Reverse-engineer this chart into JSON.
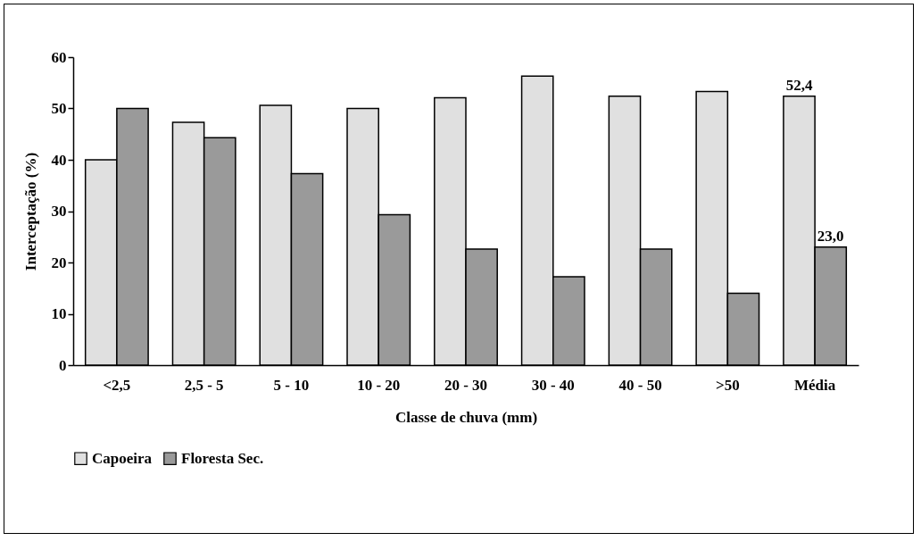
{
  "chart_data": {
    "type": "bar",
    "xlabel": "Classe de chuva (mm)",
    "ylabel": "Interceptação (%)",
    "categories": [
      "<2,5",
      "2,5 - 5",
      "5 - 10",
      "10 - 20",
      "20 - 30",
      "30 - 40",
      "40 - 50",
      ">50",
      "Média"
    ],
    "series": [
      {
        "name": "Capoeira",
        "color": "#e0e0e0",
        "values": [
          40,
          47.3,
          50.6,
          50,
          52.1,
          56.3,
          52.4,
          53.3,
          52.4
        ],
        "value_labels": [
          null,
          null,
          null,
          null,
          null,
          null,
          null,
          null,
          "52,4"
        ]
      },
      {
        "name": "Floresta Sec.",
        "color": "#9a9a9a",
        "values": [
          50,
          44.3,
          37.3,
          29.3,
          22.6,
          17.2,
          22.6,
          14,
          23.0
        ],
        "value_labels": [
          null,
          null,
          null,
          null,
          null,
          null,
          null,
          null,
          "23,0"
        ]
      }
    ],
    "ylim": [
      0,
      60
    ],
    "yticks": [
      0,
      10,
      20,
      30,
      40,
      50,
      60
    ],
    "grid": false,
    "legend": "bottom"
  }
}
